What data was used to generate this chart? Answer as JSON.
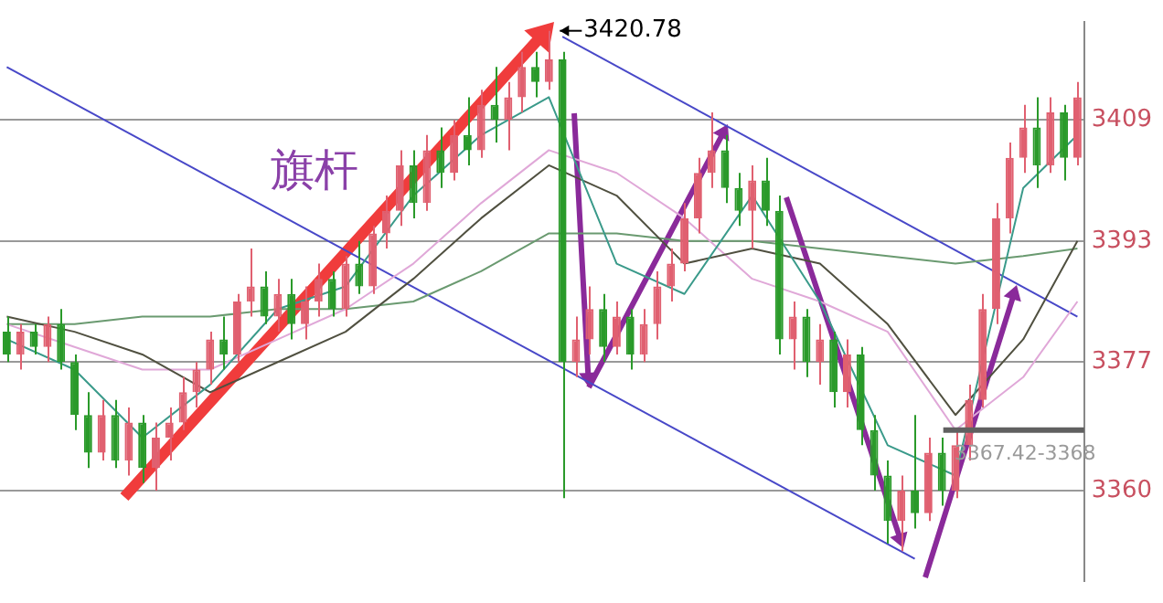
{
  "chart_data": {
    "type": "candlestick",
    "categories": [
      null,
      null,
      null,
      null,
      null,
      null,
      null,
      null,
      null,
      null,
      null,
      null,
      null,
      null,
      null,
      null,
      null,
      null,
      null,
      null,
      null,
      null,
      null,
      null,
      null,
      null,
      null,
      null,
      null,
      null,
      null,
      null,
      null,
      null,
      null,
      null,
      null,
      null,
      null,
      null,
      null,
      null,
      null,
      null,
      null,
      null,
      null,
      null,
      null,
      null,
      null,
      null,
      null,
      null,
      null,
      null,
      null,
      null,
      null,
      null,
      null,
      null,
      null,
      null,
      null,
      null,
      null,
      null,
      null,
      null,
      null,
      null,
      null,
      null,
      null,
      null,
      null,
      null,
      null,
      null
    ],
    "ohlc": [
      [
        3381,
        3383,
        3377,
        3378
      ],
      [
        3378,
        3382,
        3376,
        3381
      ],
      [
        3381,
        3382,
        3378,
        3379
      ],
      [
        3379,
        3383,
        3377,
        3382
      ],
      [
        3382,
        3384,
        3376,
        3377
      ],
      [
        3377,
        3378,
        3368,
        3370
      ],
      [
        3370,
        3373,
        3363,
        3365
      ],
      [
        3365,
        3372,
        3364,
        3370
      ],
      [
        3370,
        3372,
        3363,
        3364
      ],
      [
        3364,
        3371,
        3362,
        3369
      ],
      [
        3369,
        3370,
        3361,
        3363
      ],
      [
        3363,
        3369,
        3360,
        3367
      ],
      [
        3367,
        3371,
        3364,
        3369
      ],
      [
        3369,
        3375,
        3368,
        3373
      ],
      [
        3373,
        3377,
        3371,
        3376
      ],
      [
        3376,
        3381,
        3374,
        3380
      ],
      [
        3380,
        3383,
        3376,
        3378
      ],
      [
        3378,
        3386,
        3377,
        3385
      ],
      [
        3385,
        3392,
        3383,
        3387
      ],
      [
        3387,
        3389,
        3382,
        3383
      ],
      [
        3383,
        3388,
        3381,
        3386
      ],
      [
        3386,
        3388,
        3380,
        3382
      ],
      [
        3382,
        3387,
        3380,
        3385
      ],
      [
        3385,
        3390,
        3383,
        3388
      ],
      [
        3388,
        3389,
        3383,
        3384
      ],
      [
        3384,
        3391,
        3383,
        3390
      ],
      [
        3390,
        3393,
        3386,
        3387
      ],
      [
        3387,
        3395,
        3386,
        3394
      ],
      [
        3394,
        3399,
        3392,
        3397
      ],
      [
        3397,
        3405,
        3395,
        3403
      ],
      [
        3403,
        3405,
        3396,
        3398
      ],
      [
        3398,
        3407,
        3397,
        3405
      ],
      [
        3405,
        3408,
        3400,
        3402
      ],
      [
        3402,
        3409,
        3401,
        3407
      ],
      [
        3407,
        3412,
        3403,
        3405
      ],
      [
        3405,
        3413,
        3404,
        3411
      ],
      [
        3411,
        3416,
        3406,
        3409
      ],
      [
        3409,
        3414,
        3405,
        3412
      ],
      [
        3412,
        3418,
        3410,
        3416
      ],
      [
        3416,
        3418,
        3412,
        3414
      ],
      [
        3414,
        3420.78,
        3413,
        3417
      ],
      [
        3417,
        3418,
        3359,
        3377
      ],
      [
        3377,
        3383,
        3375,
        3380
      ],
      [
        3380,
        3387,
        3378,
        3384
      ],
      [
        3384,
        3386,
        3377,
        3379
      ],
      [
        3379,
        3385,
        3378,
        3383
      ],
      [
        3383,
        3384,
        3376,
        3378
      ],
      [
        3378,
        3384,
        3377,
        3382
      ],
      [
        3382,
        3389,
        3380,
        3387
      ],
      [
        3387,
        3392,
        3385,
        3390
      ],
      [
        3390,
        3398,
        3389,
        3396
      ],
      [
        3396,
        3404,
        3394,
        3402
      ],
      [
        3402,
        3410,
        3400,
        3405
      ],
      [
        3405,
        3407,
        3398,
        3400
      ],
      [
        3400,
        3402,
        3395,
        3397
      ],
      [
        3397,
        3403,
        3392,
        3401
      ],
      [
        3401,
        3404,
        3395,
        3397
      ],
      [
        3397,
        3399,
        3378,
        3380
      ],
      [
        3380,
        3385,
        3376,
        3383
      ],
      [
        3383,
        3384,
        3375,
        3377
      ],
      [
        3377,
        3382,
        3374,
        3380
      ],
      [
        3380,
        3381,
        3371,
        3373
      ],
      [
        3373,
        3380,
        3371,
        3378
      ],
      [
        3378,
        3379,
        3366,
        3368
      ],
      [
        3368,
        3370,
        3360,
        3362
      ],
      [
        3362,
        3364,
        3353,
        3356
      ],
      [
        3356,
        3362,
        3352,
        3360
      ],
      [
        3360,
        3370,
        3355,
        3357
      ],
      [
        3357,
        3367,
        3356,
        3365
      ],
      [
        3365,
        3367,
        3358,
        3360
      ],
      [
        3360,
        3368,
        3359,
        3366
      ],
      [
        3366,
        3374,
        3364,
        3372
      ],
      [
        3372,
        3386,
        3371,
        3384
      ],
      [
        3384,
        3398,
        3382,
        3396
      ],
      [
        3396,
        3406,
        3394,
        3404
      ],
      [
        3404,
        3411,
        3402,
        3408
      ],
      [
        3408,
        3412,
        3400,
        3403
      ],
      [
        3403,
        3412,
        3402,
        3410
      ],
      [
        3410,
        3411,
        3401,
        3404
      ],
      [
        3404,
        3414,
        3403,
        3412
      ]
    ],
    "colors": [
      "#2a9a2a",
      "#e06070",
      "#2a9a2a",
      "#e06070",
      "#2a9a2a",
      "#2a9a2a",
      "#2a9a2a",
      "#e06070",
      "#2a9a2a",
      "#e06070",
      "#2a9a2a",
      "#e06070",
      "#e06070",
      "#e06070",
      "#e06070",
      "#e06070",
      "#2a9a2a",
      "#e06070",
      "#e06070",
      "#2a9a2a",
      "#e06070",
      "#2a9a2a",
      "#e06070",
      "#e06070",
      "#2a9a2a",
      "#e06070",
      "#2a9a2a",
      "#e06070",
      "#e06070",
      "#e06070",
      "#2a9a2a",
      "#e06070",
      "#2a9a2a",
      "#e06070",
      "#2a9a2a",
      "#e06070",
      "#2a9a2a",
      "#e06070",
      "#e06070",
      "#2a9a2a",
      "#e06070",
      "#2a9a2a",
      "#e06070",
      "#e06070",
      "#2a9a2a",
      "#e06070",
      "#2a9a2a",
      "#e06070",
      "#e06070",
      "#e06070",
      "#e06070",
      "#e06070",
      "#e06070",
      "#2a9a2a",
      "#2a9a2a",
      "#e06070",
      "#2a9a2a",
      "#2a9a2a",
      "#e06070",
      "#2a9a2a",
      "#e06070",
      "#2a9a2a",
      "#e06070",
      "#2a9a2a",
      "#2a9a2a",
      "#2a9a2a",
      "#e06070",
      "#2a9a2a",
      "#e06070",
      "#2a9a2a",
      "#e06070",
      "#e06070",
      "#e06070",
      "#e06070",
      "#e06070",
      "#e06070",
      "#2a9a2a",
      "#e06070",
      "#2a9a2a",
      "#e06070"
    ],
    "series": [
      {
        "type": "line",
        "color": "#3a9a8a",
        "values": [
          3380,
          null,
          null,
          null,
          null,
          3376,
          null,
          null,
          null,
          null,
          3367,
          null,
          null,
          null,
          null,
          3374,
          null,
          null,
          null,
          null,
          3384,
          null,
          null,
          null,
          null,
          3387,
          null,
          null,
          null,
          null,
          3399,
          null,
          null,
          null,
          null,
          3407,
          null,
          null,
          null,
          null,
          3412,
          null,
          null,
          null,
          null,
          3390,
          null,
          null,
          null,
          null,
          3386,
          null,
          null,
          null,
          null,
          3399,
          null,
          null,
          null,
          null,
          3385,
          null,
          null,
          null,
          null,
          3366,
          null,
          null,
          null,
          null,
          3362,
          null,
          null,
          null,
          null,
          3400,
          null,
          null,
          null,
          3407
        ]
      },
      {
        "type": "line",
        "color": "#505040",
        "values": [
          3383,
          null,
          null,
          null,
          null,
          3381,
          null,
          null,
          null,
          null,
          3378,
          null,
          null,
          null,
          null,
          3373,
          null,
          null,
          null,
          null,
          3377,
          null,
          null,
          null,
          null,
          3381,
          null,
          null,
          null,
          null,
          3388,
          null,
          null,
          null,
          null,
          3396,
          null,
          null,
          null,
          null,
          3403,
          null,
          null,
          null,
          null,
          3399,
          null,
          null,
          null,
          null,
          3390,
          null,
          null,
          null,
          null,
          3392,
          null,
          null,
          null,
          null,
          3390,
          null,
          null,
          null,
          null,
          3382,
          null,
          null,
          null,
          null,
          3370,
          null,
          null,
          null,
          null,
          3380,
          null,
          null,
          null,
          3393
        ]
      },
      {
        "type": "line",
        "color": "#e0a8d8",
        "values": [
          3382,
          null,
          null,
          null,
          null,
          3379,
          null,
          null,
          null,
          null,
          3376,
          null,
          null,
          null,
          null,
          3376,
          null,
          null,
          null,
          null,
          3380,
          null,
          null,
          null,
          null,
          3384,
          null,
          null,
          null,
          null,
          3390,
          null,
          null,
          null,
          null,
          3398,
          null,
          null,
          null,
          null,
          3405,
          null,
          null,
          null,
          null,
          3402,
          null,
          null,
          null,
          null,
          3396,
          null,
          null,
          null,
          null,
          3388,
          null,
          null,
          null,
          null,
          3385,
          null,
          null,
          null,
          null,
          3381,
          null,
          null,
          null,
          null,
          3368,
          null,
          null,
          null,
          null,
          3375,
          null,
          null,
          null,
          3385
        ]
      },
      {
        "type": "line",
        "color": "#6a9a70",
        "values": [
          3382,
          null,
          null,
          null,
          null,
          3382,
          null,
          null,
          null,
          null,
          3383,
          null,
          null,
          null,
          null,
          3383,
          null,
          null,
          null,
          null,
          3384,
          null,
          null,
          null,
          null,
          3384,
          null,
          null,
          null,
          null,
          3385,
          null,
          null,
          null,
          null,
          3389,
          null,
          null,
          null,
          null,
          3394,
          null,
          null,
          null,
          null,
          3394,
          null,
          null,
          null,
          null,
          3393,
          null,
          null,
          null,
          null,
          3393,
          null,
          null,
          null,
          null,
          3392,
          null,
          null,
          null,
          null,
          3391,
          null,
          null,
          null,
          null,
          3390,
          null,
          null,
          null,
          null,
          3391,
          null,
          null,
          null,
          3392
        ]
      },
      {
        "type": "line",
        "color": "#4848c8",
        "values": [
          null,
          null,
          null,
          null,
          null,
          null,
          null,
          null,
          null,
          null,
          null,
          null,
          null,
          null,
          null,
          null,
          null,
          null,
          null,
          null,
          null,
          null,
          null,
          null,
          null,
          null,
          null,
          null,
          null,
          null,
          null,
          null,
          null,
          null,
          null,
          null,
          null,
          null,
          null,
          null,
          null,
          3420,
          null,
          null,
          null,
          null,
          null,
          null,
          null,
          null,
          null,
          null,
          null,
          null,
          null,
          null,
          null,
          null,
          null,
          null,
          null,
          null,
          null,
          null,
          null,
          null,
          null,
          null,
          null,
          null,
          null,
          null,
          null,
          null,
          null,
          null,
          null,
          null,
          null,
          3383
        ]
      },
      {
        "type": "line",
        "color": "#4848c8",
        "values": [
          3416,
          null,
          null,
          null,
          null,
          null,
          null,
          null,
          null,
          null,
          null,
          null,
          null,
          null,
          null,
          null,
          null,
          null,
          null,
          null,
          null,
          null,
          null,
          null,
          null,
          null,
          null,
          null,
          null,
          null,
          null,
          null,
          null,
          null,
          null,
          null,
          null,
          null,
          null,
          null,
          null,
          null,
          null,
          null,
          null,
          null,
          null,
          null,
          null,
          null,
          null,
          null,
          null,
          null,
          null,
          null,
          null,
          null,
          null,
          null,
          null,
          null,
          null,
          null,
          null,
          null,
          null,
          3351,
          null,
          null,
          null,
          null,
          null,
          null,
          null,
          null,
          null,
          null,
          null,
          null
        ]
      }
    ],
    "ylim": [
      3348,
      3422
    ],
    "yticks": [
      3360,
      3377,
      3393,
      3409
    ],
    "grid": "y",
    "tick_labels": "y",
    "marker": "none",
    "legend": false,
    "ref_lines": [
      {
        "axis": "y",
        "value": 3368,
        "color": "#606060"
      }
    ],
    "annotations": [
      "旗杆",
      "3420.78",
      "3367.42-3368"
    ]
  }
}
